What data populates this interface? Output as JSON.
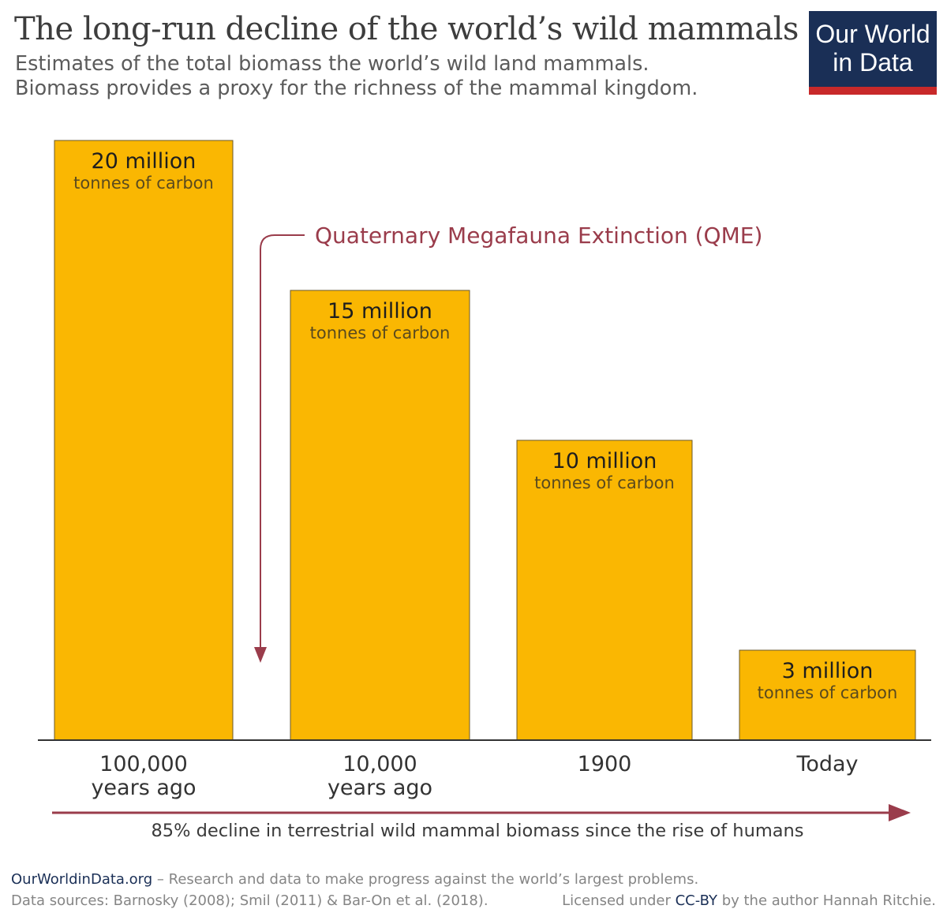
{
  "header": {
    "title": "The long-run decline of the world’s wild mammals",
    "subtitle_line1": "Estimates of the total biomass the world’s wild land mammals.",
    "subtitle_line2": "Biomass provides a proxy for the richness of the mammal kingdom."
  },
  "logo": {
    "line1": "Our World",
    "line2": "in Data"
  },
  "chart_data": {
    "type": "bar",
    "categories": [
      [
        "100,000",
        "years ago"
      ],
      [
        "10,000",
        "years ago"
      ],
      [
        "1900"
      ],
      [
        "Today"
      ]
    ],
    "values": [
      20,
      15,
      10,
      3
    ],
    "value_labels": [
      "20 million",
      "15 million",
      "10 million",
      "3 million"
    ],
    "unit_label": "tonnes of carbon",
    "annotations": {
      "qme": "Quaternary Megafauna Extinction (QME)",
      "decline": "85% decline in terrestrial wild mammal biomass since the rise of humans"
    },
    "colors": {
      "bar": "#fab702",
      "bar_edge": "#6b5a2c",
      "annotation": "#9a3c4b",
      "axis": "#333333"
    }
  },
  "footer": {
    "site": "OurWorldinData.org",
    "tagline": " – Research and data to make progress against the world’s largest problems.",
    "sources": "Data sources: Barnosky (2008); Smil (2011) & Bar-On et al. (2018).",
    "license_pre": "Licensed under ",
    "license_link": "CC-BY",
    "license_post": " by the author Hannah Ritchie."
  }
}
